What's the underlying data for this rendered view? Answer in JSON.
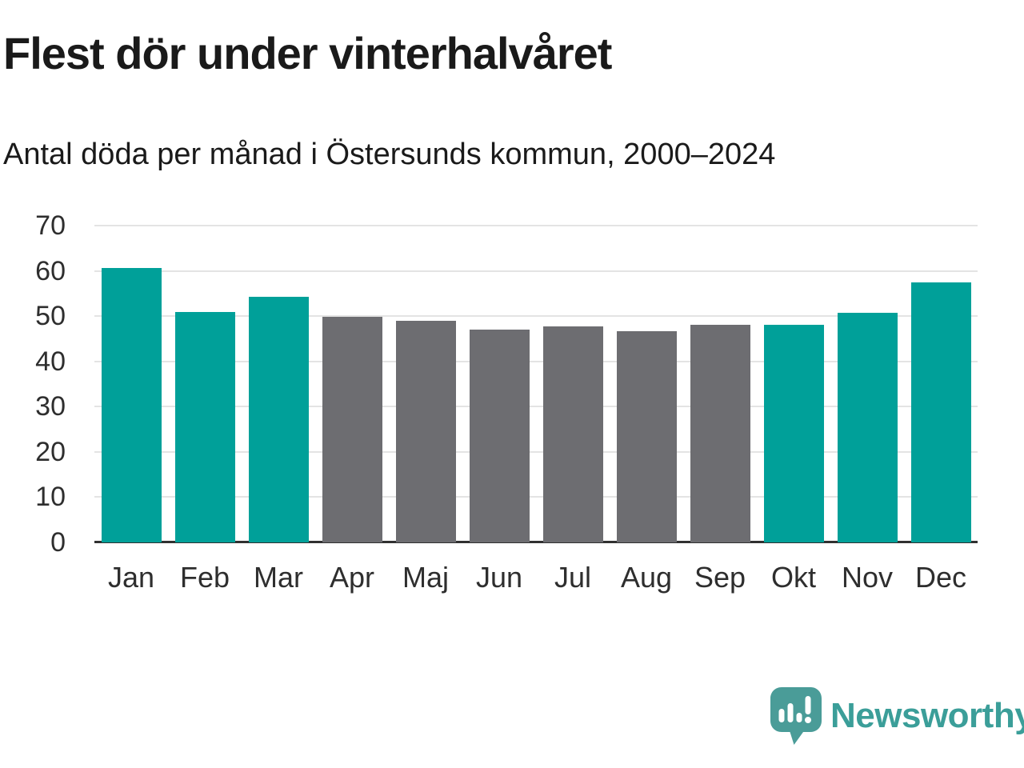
{
  "chart_data": {
    "type": "bar",
    "title": "Flest dör under vinterhalvåret",
    "subtitle": "Antal döda per månad i Östersunds kommun, 2000–2024",
    "categories": [
      "Jan",
      "Feb",
      "Mar",
      "Apr",
      "Maj",
      "Jun",
      "Jul",
      "Aug",
      "Sep",
      "Okt",
      "Nov",
      "Dec"
    ],
    "values": [
      60.6,
      51.0,
      54.3,
      49.8,
      48.9,
      47.1,
      47.7,
      46.7,
      48.1,
      48.0,
      50.8,
      57.5
    ],
    "highlighted": [
      true,
      true,
      true,
      false,
      false,
      false,
      false,
      false,
      false,
      true,
      true,
      true
    ],
    "xlabel": "",
    "ylabel": "",
    "ylim": [
      0,
      70
    ],
    "yticks": [
      0,
      10,
      20,
      30,
      40,
      50,
      60,
      70
    ],
    "grid": "horizontal",
    "legend": "none",
    "colors": {
      "highlight_bar": "#00a099",
      "muted_bar": "#6d6d71",
      "gridline": "#e4e4e4",
      "axis_line": "#303030",
      "text": "#1a1a1a",
      "tick_text": "#2e2e2e"
    }
  },
  "footer": {
    "brand": "Newsworthy",
    "logo_icon": "speech-bubble-bar-chart-exclamation-icon",
    "brand_color": "#3b9e99",
    "icon_color": "#4a9c98"
  }
}
